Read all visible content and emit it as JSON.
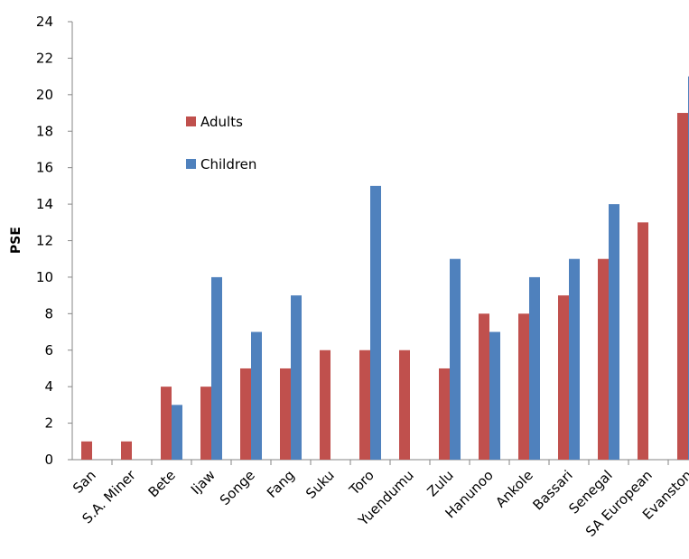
{
  "chart_data": {
    "type": "bar",
    "ylabel": "PSE",
    "xlabel": "",
    "ylim": [
      0,
      24
    ],
    "yticks": [
      "0",
      "2",
      "4",
      "6",
      "8",
      "10",
      "12",
      "14",
      "16",
      "18",
      "20",
      "22",
      "24"
    ],
    "grid": false,
    "legend_position": "upper-left inside plot",
    "categories": [
      "San",
      "S.A. Miner",
      "Bete",
      "Ijaw",
      "Songe",
      "Fang",
      "Suku",
      "Toro",
      "Yuendumu",
      "Zulu",
      "Hanunoo",
      "Ankole",
      "Bassari",
      "Senegal",
      "SA European",
      "Evanston"
    ],
    "series": [
      {
        "name": "Adults",
        "color": "#c0504d",
        "values": [
          1,
          1,
          4,
          4,
          5,
          5,
          6,
          6,
          6,
          5,
          8,
          8,
          9,
          11,
          13,
          19
        ]
      },
      {
        "name": "Children",
        "color": "#4f81bd",
        "values": [
          null,
          null,
          3,
          10,
          7,
          9,
          null,
          15,
          null,
          11,
          7,
          10,
          11,
          14,
          null,
          21
        ]
      }
    ]
  }
}
